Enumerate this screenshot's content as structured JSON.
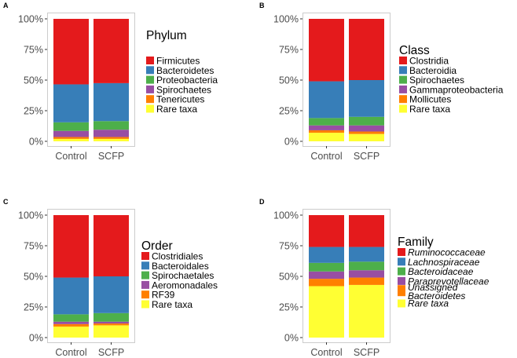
{
  "colors": {
    "red": "#e41a1c",
    "blue": "#377eb8",
    "green": "#4daf4a",
    "purple": "#984ea3",
    "orange": "#ff7f00",
    "yellow": "#ffff33",
    "panel_border": "#cccccc",
    "tick_text": "#4d4d4d"
  },
  "chart_data": [
    {
      "type": "bar",
      "stacked": true,
      "panel": "A",
      "title": "",
      "xlabel": "",
      "ylabel": "",
      "ylim": [
        0,
        100
      ],
      "yticks": [
        "0%",
        "25%",
        "50%",
        "75%",
        "100%"
      ],
      "categories": [
        "Control",
        "SCFP"
      ],
      "legend_title": "Phylum",
      "legend_italic": false,
      "series": [
        {
          "name": "Rare taxa",
          "color": "#ffff33",
          "values": [
            2,
            2
          ]
        },
        {
          "name": "Tenericutes",
          "color": "#ff7f00",
          "values": [
            1.5,
            1.5
          ]
        },
        {
          "name": "Spirochaetes",
          "color": "#984ea3",
          "values": [
            5,
            6
          ]
        },
        {
          "name": "Proteobacteria",
          "color": "#4daf4a",
          "values": [
            7,
            7
          ]
        },
        {
          "name": "Bacteroidetes",
          "color": "#377eb8",
          "values": [
            31,
            31
          ]
        },
        {
          "name": "Firmicutes",
          "color": "#e41a1c",
          "values": [
            53.5,
            52.5
          ]
        }
      ]
    },
    {
      "type": "bar",
      "stacked": true,
      "panel": "B",
      "title": "",
      "xlabel": "",
      "ylabel": "",
      "ylim": [
        0,
        100
      ],
      "yticks": [
        "0%",
        "25%",
        "50%",
        "75%",
        "100%"
      ],
      "categories": [
        "Control",
        "SCFP"
      ],
      "legend_title": "Class",
      "legend_italic": false,
      "series": [
        {
          "name": "Rare taxa",
          "color": "#ffff33",
          "values": [
            7,
            6
          ]
        },
        {
          "name": "Mollicutes",
          "color": "#ff7f00",
          "values": [
            2,
            2
          ]
        },
        {
          "name": "Gammaproteobacteria",
          "color": "#984ea3",
          "values": [
            4,
            5
          ]
        },
        {
          "name": "Spirochaetes",
          "color": "#4daf4a",
          "values": [
            6,
            7
          ]
        },
        {
          "name": "Bacteroidia",
          "color": "#377eb8",
          "values": [
            30,
            30
          ]
        },
        {
          "name": "Clostridia",
          "color": "#e41a1c",
          "values": [
            51,
            50
          ]
        }
      ]
    },
    {
      "type": "bar",
      "stacked": true,
      "panel": "C",
      "title": "",
      "xlabel": "",
      "ylabel": "",
      "ylim": [
        0,
        100
      ],
      "yticks": [
        "0%",
        "25%",
        "50%",
        "75%",
        "100%"
      ],
      "categories": [
        "Control",
        "SCFP"
      ],
      "legend_title": "Order",
      "legend_italic": false,
      "series": [
        {
          "name": "Rare taxa",
          "color": "#ffff33",
          "values": [
            9,
            10
          ]
        },
        {
          "name": "RF39",
          "color": "#ff7f00",
          "values": [
            2,
            1.5
          ]
        },
        {
          "name": "Aeromonadales",
          "color": "#984ea3",
          "values": [
            2,
            1.5
          ]
        },
        {
          "name": "Spirochaetales",
          "color": "#4daf4a",
          "values": [
            6,
            7
          ]
        },
        {
          "name": "Bacteroidales",
          "color": "#377eb8",
          "values": [
            30,
            30
          ]
        },
        {
          "name": "Clostridiales",
          "color": "#e41a1c",
          "values": [
            51,
            50
          ]
        }
      ]
    },
    {
      "type": "bar",
      "stacked": true,
      "panel": "D",
      "title": "",
      "xlabel": "",
      "ylabel": "",
      "ylim": [
        0,
        100
      ],
      "yticks": [
        "0%",
        "25%",
        "50%",
        "75%",
        "100%"
      ],
      "categories": [
        "Control",
        "SCFP"
      ],
      "legend_title": "Family",
      "legend_italic": true,
      "series": [
        {
          "name": "Rare taxa",
          "color": "#ffff33",
          "values": [
            42,
            43
          ]
        },
        {
          "name": "Bacteroidetes",
          "color": "#ff7f00",
          "values": [
            6,
            6
          ]
        },
        {
          "name": "Paraprevotellaceae",
          "color": "#984ea3",
          "values": [
            6,
            6
          ]
        },
        {
          "name": "Bacteroidaceae",
          "color": "#4daf4a",
          "values": [
            7,
            7
          ]
        },
        {
          "name": "Lachnospiraceae",
          "color": "#377eb8",
          "values": [
            13,
            12
          ]
        },
        {
          "name": "Ruminococcaceae",
          "color": "#e41a1c",
          "values": [
            26,
            26
          ]
        }
      ],
      "legend_extra_label": "Unassigned"
    }
  ]
}
